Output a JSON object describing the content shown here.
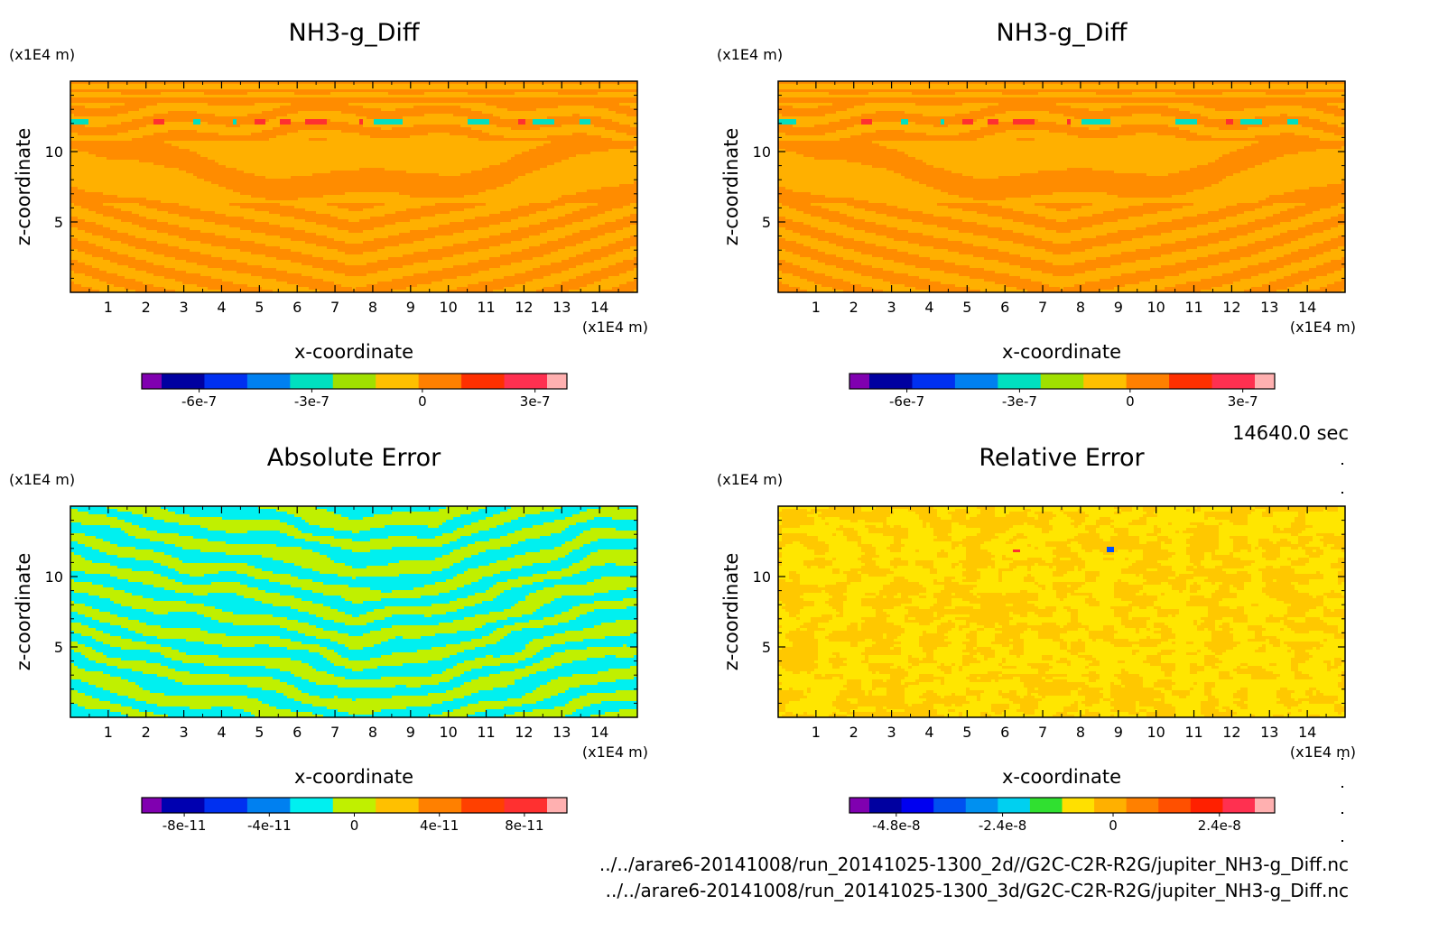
{
  "timestamp": "14640.0 sec",
  "file_paths": [
    "../../arare6-20141008/run_20141025-1300_2d//G2C-C2R-R2G/jupiter_NH3-g_Diff.nc",
    "../../arare6-20141008/run_20141025-1300_3d/G2C-C2R-R2G/jupiter_NH3-g_Diff.nc"
  ],
  "chart_data": [
    {
      "type": "heatmap",
      "title": "NH3-g_Diff",
      "xlabel": "x-coordinate",
      "ylabel": "z-coordinate",
      "x_unit": "(x1E4 m)",
      "z_unit": "(x1E4 m)",
      "xlim": [
        0,
        15
      ],
      "zlim": [
        0,
        15
      ],
      "x_ticks": [
        1,
        2,
        3,
        4,
        5,
        6,
        7,
        8,
        9,
        10,
        11,
        12,
        13,
        14
      ],
      "z_ticks": [
        5,
        10
      ],
      "field_colors": [
        "#ffb000",
        "#ff8c00",
        "#00e0c0",
        "#ff3030"
      ],
      "colorbar": {
        "colors": [
          "#8000b0",
          "#0000a0",
          "#0030f0",
          "#0080f0",
          "#00e0c0",
          "#a0e000",
          "#ffc000",
          "#ff8000",
          "#ff3000",
          "#ff3050",
          "#ffb0b0"
        ],
        "tick_labels": [
          "-6e-7",
          "-3e-7",
          "0",
          "3e-7"
        ]
      }
    },
    {
      "type": "heatmap",
      "title": "NH3-g_Diff",
      "xlabel": "x-coordinate",
      "ylabel": "z-coordinate",
      "x_unit": "(x1E4 m)",
      "z_unit": "(x1E4 m)",
      "xlim": [
        0,
        15
      ],
      "zlim": [
        0,
        15
      ],
      "x_ticks": [
        1,
        2,
        3,
        4,
        5,
        6,
        7,
        8,
        9,
        10,
        11,
        12,
        13,
        14
      ],
      "z_ticks": [
        5,
        10
      ],
      "field_colors": [
        "#ffb000",
        "#ff8c00",
        "#00e0c0",
        "#ff3030"
      ],
      "colorbar": {
        "colors": [
          "#8000b0",
          "#0000a0",
          "#0030f0",
          "#0080f0",
          "#00e0c0",
          "#a0e000",
          "#ffc000",
          "#ff8000",
          "#ff3000",
          "#ff3050",
          "#ffb0b0"
        ],
        "tick_labels": [
          "-6e-7",
          "-3e-7",
          "0",
          "3e-7"
        ]
      }
    },
    {
      "type": "heatmap",
      "title": "Absolute Error",
      "xlabel": "x-coordinate",
      "ylabel": "z-coordinate",
      "x_unit": "(x1E4 m)",
      "z_unit": "(x1E4 m)",
      "xlim": [
        0,
        15
      ],
      "zlim": [
        0,
        15
      ],
      "x_ticks": [
        1,
        2,
        3,
        4,
        5,
        6,
        7,
        8,
        9,
        10,
        11,
        12,
        13,
        14
      ],
      "z_ticks": [
        5,
        10
      ],
      "field_colors": [
        "#c0f000",
        "#00f0f0"
      ],
      "colorbar": {
        "colors": [
          "#8000b0",
          "#0000b0",
          "#0030f0",
          "#0080f0",
          "#00f0f0",
          "#c0f000",
          "#ffc000",
          "#ff8000",
          "#ff4000",
          "#ff3030",
          "#ffb0b0"
        ],
        "tick_labels": [
          "-8e-11",
          "-4e-11",
          "0",
          "4e-11",
          "8e-11"
        ]
      }
    },
    {
      "type": "heatmap",
      "title": "Relative Error",
      "xlabel": "x-coordinate",
      "ylabel": "z-coordinate",
      "x_unit": "(x1E4 m)",
      "z_unit": "(x1E4 m)",
      "xlim": [
        0,
        15
      ],
      "zlim": [
        0,
        15
      ],
      "x_ticks": [
        1,
        2,
        3,
        4,
        5,
        6,
        7,
        8,
        9,
        10,
        11,
        12,
        13,
        14
      ],
      "z_ticks": [
        5,
        10
      ],
      "field_colors": [
        "#ffc800",
        "#ffe600",
        "#ff3030",
        "#0050ff"
      ],
      "colorbar": {
        "colors": [
          "#8000b0",
          "#0000a0",
          "#0000f0",
          "#0050f0",
          "#0090f0",
          "#00d0f0",
          "#30e030",
          "#ffe000",
          "#ffb000",
          "#ff8000",
          "#ff5000",
          "#ff2000",
          "#ff3050",
          "#ffb0b0"
        ],
        "tick_labels": [
          "-4.8e-8",
          "-2.4e-8",
          "0",
          "2.4e-8"
        ]
      }
    }
  ]
}
